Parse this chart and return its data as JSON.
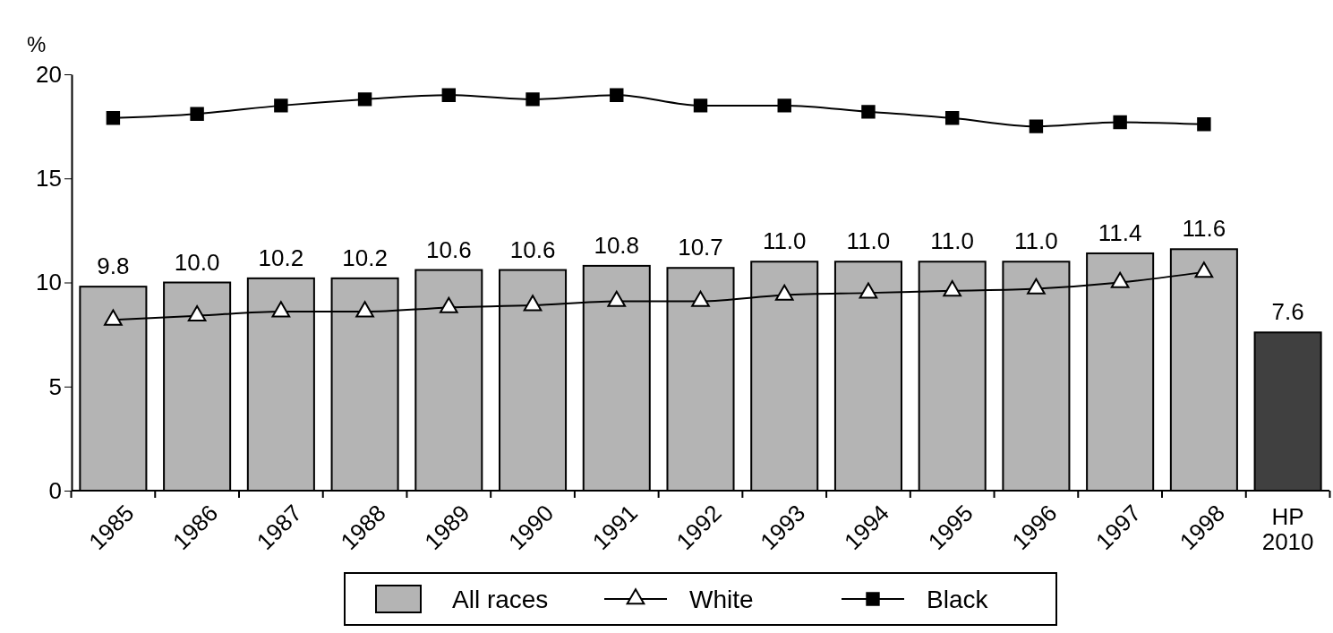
{
  "chart_data": {
    "type": "bar",
    "ylabel": "%",
    "categories": [
      "1985",
      "1986",
      "1987",
      "1988",
      "1989",
      "1990",
      "1991",
      "1992",
      "1993",
      "1994",
      "1995",
      "1996",
      "1997",
      "1998",
      "HP 2010"
    ],
    "series": [
      {
        "name": "All races",
        "value_labels": [
          "9.8",
          "10.0",
          "10.2",
          "10.2",
          "10.6",
          "10.6",
          "10.8",
          "10.7",
          "11.0",
          "11.0",
          "11.0",
          "11.0",
          "11.4",
          "11.6",
          "7.6"
        ],
        "colors": [
          "#b4b4b4",
          "#b4b4b4",
          "#b4b4b4",
          "#b4b4b4",
          "#b4b4b4",
          "#b4b4b4",
          "#b4b4b4",
          "#b4b4b4",
          "#b4b4b4",
          "#b4b4b4",
          "#b4b4b4",
          "#b4b4b4",
          "#b4b4b4",
          "#b4b4b4",
          "#404040"
        ],
        "color": "#b4b4b4",
        "values": [
          9.8,
          10.0,
          10.2,
          10.2,
          10.6,
          10.6,
          10.8,
          10.7,
          11.0,
          11.0,
          11.0,
          11.0,
          11.4,
          11.6,
          7.6
        ]
      },
      {
        "name": "White",
        "type": "line",
        "marker": "triangle",
        "color": "#000000",
        "values": [
          8.2,
          8.4,
          8.6,
          8.6,
          8.8,
          8.9,
          9.1,
          9.1,
          9.4,
          9.5,
          9.6,
          9.7,
          10.0,
          10.5,
          null
        ]
      },
      {
        "name": "Black",
        "type": "line",
        "marker": "square",
        "color": "#000000",
        "values": [
          17.9,
          18.1,
          18.5,
          18.8,
          19.0,
          18.8,
          19.0,
          18.5,
          18.5,
          18.2,
          17.9,
          17.5,
          17.7,
          17.6,
          null
        ]
      }
    ],
    "ylim": [
      0,
      20
    ],
    "yticks": [
      0,
      5,
      10,
      15,
      20
    ],
    "legend": "bottom",
    "grid": false
  }
}
